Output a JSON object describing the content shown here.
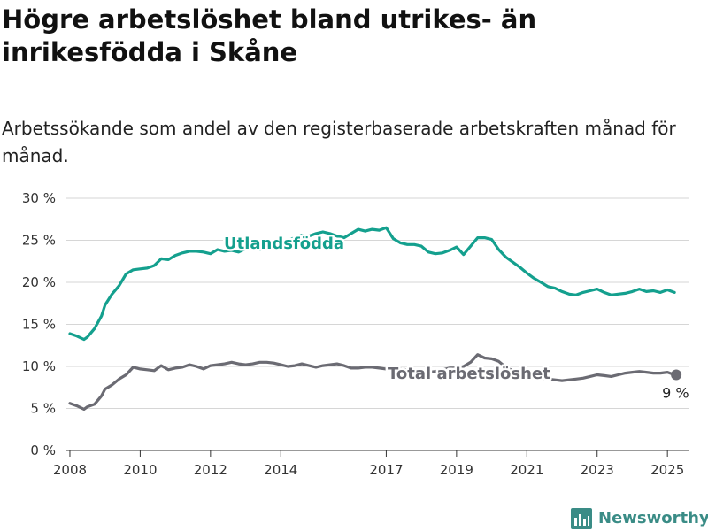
{
  "title": "Högre arbetslöshet bland utrikes- än inrikesfödda i Skåne",
  "subtitle": "Arbetssökande som andel av den registerbaserade arbetskraften månad för månad.",
  "brand": "Newsworthy",
  "colors": {
    "utlandsfodda": "#14a08e",
    "total": "#6b6b73",
    "grid": "#d6d6d6",
    "axis": "#333333",
    "brand": "#3a8c86"
  },
  "chart_data": {
    "type": "line",
    "title": "Högre arbetslöshet bland utrikes- än inrikesfödda i Skåne",
    "subtitle": "Arbetssökande som andel av den registerbaserade arbetskraften månad för månad.",
    "ylim": [
      0,
      30
    ],
    "yticks": [
      0,
      5,
      10,
      15,
      20,
      25,
      30
    ],
    "ytick_labels": [
      "0 %",
      "5 %",
      "10 %",
      "15 %",
      "20 %",
      "25 %",
      "30 %"
    ],
    "xlim": [
      2007.9,
      2025.6
    ],
    "xticks": [
      2008,
      2010,
      2012,
      2014,
      2017,
      2019,
      2021,
      2023,
      2025
    ],
    "xtick_labels": [
      "2008",
      "2010",
      "2012",
      "2014",
      "2017",
      "2019",
      "2021",
      "2023",
      "2025"
    ],
    "grid": "horizontal",
    "legend": "inline labels",
    "end_value_label": "9 %",
    "series": [
      {
        "name": "Utlandsfödda",
        "x": [
          2008.0,
          2008.2,
          2008.4,
          2008.5,
          2008.7,
          2008.9,
          2009.0,
          2009.2,
          2009.4,
          2009.6,
          2009.8,
          2010.0,
          2010.2,
          2010.4,
          2010.6,
          2010.8,
          2011.0,
          2011.2,
          2011.4,
          2011.6,
          2011.8,
          2012.0,
          2012.2,
          2012.4,
          2012.6,
          2012.8,
          2013.0,
          2013.2,
          2013.4,
          2013.6,
          2013.8,
          2014.0,
          2014.2,
          2014.4,
          2014.6,
          2014.8,
          2015.0,
          2015.2,
          2015.4,
          2015.6,
          2015.8,
          2016.0,
          2016.2,
          2016.4,
          2016.6,
          2016.8,
          2017.0,
          2017.2,
          2017.4,
          2017.6,
          2017.8,
          2018.0,
          2018.2,
          2018.4,
          2018.6,
          2018.8,
          2019.0,
          2019.2,
          2019.4,
          2019.6,
          2019.8,
          2020.0,
          2020.2,
          2020.4,
          2020.6,
          2020.8,
          2021.0,
          2021.2,
          2021.4,
          2021.6,
          2021.8,
          2022.0,
          2022.2,
          2022.4,
          2022.6,
          2022.8,
          2023.0,
          2023.2,
          2023.4,
          2023.6,
          2023.8,
          2024.0,
          2024.2,
          2024.4,
          2024.6,
          2024.8,
          2025.0,
          2025.2
        ],
        "values": [
          13.9,
          13.6,
          13.2,
          13.5,
          14.5,
          16.0,
          17.3,
          18.6,
          19.6,
          21.0,
          21.5,
          21.6,
          21.7,
          22.0,
          22.8,
          22.7,
          23.2,
          23.5,
          23.7,
          23.7,
          23.6,
          23.4,
          23.9,
          23.7,
          23.8,
          23.6,
          24.0,
          24.3,
          23.9,
          24.4,
          24.6,
          24.8,
          25.0,
          25.3,
          25.6,
          25.5,
          25.8,
          26.0,
          25.8,
          25.5,
          25.3,
          25.8,
          26.3,
          26.1,
          26.3,
          26.2,
          26.5,
          25.2,
          24.7,
          24.5,
          24.5,
          24.3,
          23.6,
          23.4,
          23.5,
          23.8,
          24.2,
          23.3,
          24.3,
          25.3,
          25.3,
          25.1,
          23.9,
          23.0,
          22.4,
          21.8,
          21.1,
          20.5,
          20.0,
          19.5,
          19.3,
          18.9,
          18.6,
          18.5,
          18.8,
          19.0,
          19.2,
          18.8,
          18.5,
          18.6,
          18.7,
          18.9,
          19.2,
          18.9,
          19.0,
          18.8,
          19.1,
          18.8
        ]
      },
      {
        "name": "Total arbetslöshet",
        "x": [
          2008.0,
          2008.2,
          2008.4,
          2008.5,
          2008.7,
          2008.9,
          2009.0,
          2009.2,
          2009.4,
          2009.6,
          2009.8,
          2010.0,
          2010.2,
          2010.4,
          2010.6,
          2010.8,
          2011.0,
          2011.2,
          2011.4,
          2011.6,
          2011.8,
          2012.0,
          2012.2,
          2012.4,
          2012.6,
          2012.8,
          2013.0,
          2013.2,
          2013.4,
          2013.6,
          2013.8,
          2014.0,
          2014.2,
          2014.4,
          2014.6,
          2014.8,
          2015.0,
          2015.2,
          2015.4,
          2015.6,
          2015.8,
          2016.0,
          2016.2,
          2016.4,
          2016.6,
          2016.8,
          2017.0,
          2017.2,
          2017.4,
          2017.6,
          2017.8,
          2018.0,
          2018.2,
          2018.4,
          2018.6,
          2018.8,
          2019.0,
          2019.2,
          2019.4,
          2019.6,
          2019.8,
          2020.0,
          2020.2,
          2020.4,
          2020.6,
          2020.8,
          2021.0,
          2021.2,
          2021.4,
          2021.6,
          2021.8,
          2022.0,
          2022.2,
          2022.4,
          2022.6,
          2022.8,
          2023.0,
          2023.2,
          2023.4,
          2023.6,
          2023.8,
          2024.0,
          2024.2,
          2024.4,
          2024.6,
          2024.8,
          2025.0,
          2025.2
        ],
        "values": [
          5.6,
          5.3,
          4.9,
          5.2,
          5.5,
          6.5,
          7.3,
          7.8,
          8.5,
          9.0,
          9.9,
          9.7,
          9.6,
          9.5,
          10.1,
          9.6,
          9.8,
          9.9,
          10.2,
          10.0,
          9.7,
          10.1,
          10.2,
          10.3,
          10.5,
          10.3,
          10.2,
          10.3,
          10.5,
          10.5,
          10.4,
          10.2,
          10.0,
          10.1,
          10.3,
          10.1,
          9.9,
          10.1,
          10.2,
          10.3,
          10.1,
          9.8,
          9.8,
          9.9,
          9.9,
          9.8,
          9.7,
          9.6,
          9.7,
          9.6,
          9.4,
          9.3,
          9.3,
          9.4,
          9.6,
          9.8,
          9.8,
          10.0,
          10.5,
          11.4,
          11.0,
          10.9,
          10.6,
          9.9,
          9.5,
          9.1,
          8.8,
          8.7,
          8.6,
          8.5,
          8.4,
          8.3,
          8.4,
          8.5,
          8.6,
          8.8,
          9.0,
          8.9,
          8.8,
          9.0,
          9.2,
          9.3,
          9.4,
          9.3,
          9.2,
          9.2,
          9.3,
          9.0
        ]
      }
    ]
  }
}
